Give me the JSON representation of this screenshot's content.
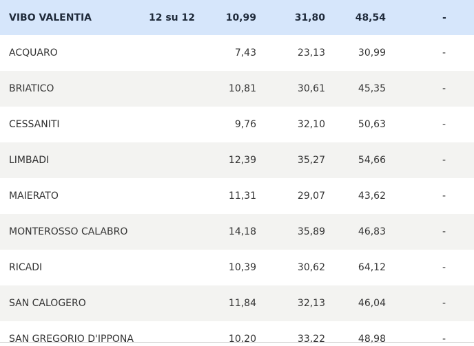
{
  "table": {
    "header": {
      "name": "VIBO VALENTIA",
      "sections": "12 su 12",
      "values": [
        "10,99",
        "31,80",
        "48,54"
      ],
      "change": "-"
    },
    "rows": [
      {
        "name": "ACQUARO",
        "values": [
          "7,43",
          "23,13",
          "30,99"
        ],
        "change": "-"
      },
      {
        "name": "BRIATICO",
        "values": [
          "10,81",
          "30,61",
          "45,35"
        ],
        "change": "-"
      },
      {
        "name": "CESSANITI",
        "values": [
          "9,76",
          "32,10",
          "50,63"
        ],
        "change": "-"
      },
      {
        "name": "LIMBADI",
        "values": [
          "12,39",
          "35,27",
          "54,66"
        ],
        "change": "-"
      },
      {
        "name": "MAIERATO",
        "values": [
          "11,31",
          "29,07",
          "43,62"
        ],
        "change": "-"
      },
      {
        "name": "MONTEROSSO CALABRO",
        "values": [
          "14,18",
          "35,89",
          "46,83"
        ],
        "change": "-"
      },
      {
        "name": "RICADI",
        "values": [
          "10,39",
          "30,62",
          "64,12"
        ],
        "change": "-"
      },
      {
        "name": "SAN CALOGERO",
        "values": [
          "11,84",
          "32,13",
          "46,04"
        ],
        "change": "-"
      },
      {
        "name": "SAN GREGORIO D'IPPONA",
        "values": [
          "10,20",
          "33,22",
          "48,98"
        ],
        "change": "-"
      }
    ]
  }
}
